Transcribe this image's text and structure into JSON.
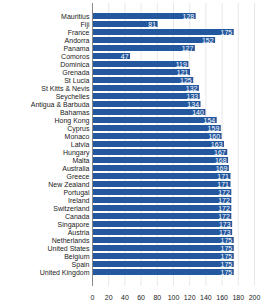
{
  "chart_data": {
    "type": "bar",
    "orientation": "horizontal",
    "categories": [
      "Mauritius",
      "Fiji",
      "France",
      "Andorra",
      "Panama",
      "Comoros",
      "Dominica",
      "Grenada",
      "St Lucia",
      "St Kitts & Nevis",
      "Seychelles",
      "Antigua & Barbuda",
      "Bahamas",
      "Hong Kong",
      "Cyprus",
      "Monaco",
      "Latvia",
      "Hungary",
      "Malta",
      "Australia",
      "Greece",
      "New Zealand",
      "Portugal",
      "Ireland",
      "Switzerland",
      "Canada",
      "Singapore",
      "Austria",
      "Netherlands",
      "United States",
      "Belgium",
      "Spain",
      "United Kingdom"
    ],
    "values": [
      128,
      81,
      175,
      152,
      127,
      47,
      119,
      121,
      125,
      132,
      133,
      134,
      140,
      154,
      159,
      160,
      163,
      167,
      168,
      169,
      171,
      171,
      172,
      172,
      172,
      172,
      173,
      173,
      175,
      175,
      175,
      175,
      175
    ],
    "color": "#24589e",
    "xlim": [
      0,
      200
    ],
    "xticks": [
      0,
      20,
      40,
      60,
      80,
      100,
      120,
      140,
      160,
      180,
      200
    ],
    "grid": true,
    "data_labels": true
  }
}
